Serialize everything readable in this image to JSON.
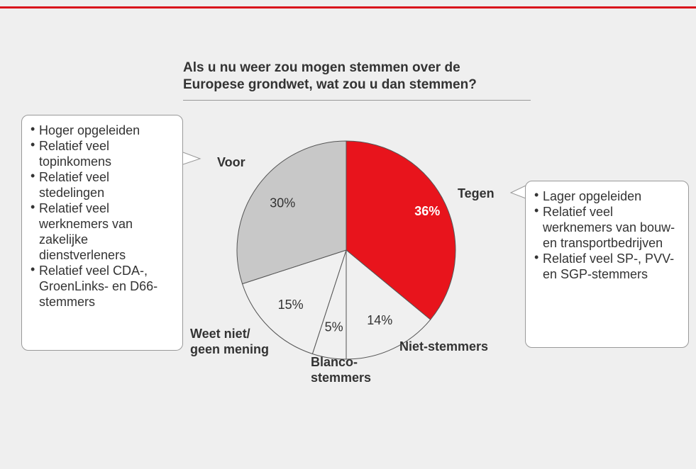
{
  "chart_data": {
    "type": "pie",
    "title": "Als u nu weer zou mogen stemmen over de\nEuropese grondwet, wat zou u dan stemmen?",
    "categories": [
      "Tegen",
      "Niet-stemmers",
      "Blanco-\nstemmers",
      "Weet niet/\ngeen mening",
      "Voor"
    ],
    "values": [
      36,
      14,
      5,
      15,
      30
    ],
    "value_labels": [
      "36%",
      "14%",
      "5%",
      "15%",
      "30%"
    ],
    "colors": [
      "#e8141c",
      "#f0f0f0",
      "#f0f0f0",
      "#f0f0f0",
      "#c8c8c8"
    ]
  },
  "callouts": {
    "left": [
      "Hoger opgeleiden",
      "Relatief veel topinkomens",
      "Relatief veel stedelingen",
      "Relatief veel werknemers van zakelijke dienstverleners",
      "Relatief veel CDA-, GroenLinks- en D66-stemmers"
    ],
    "right": [
      "Lager opgeleiden",
      "Relatief veel werknemers van bouw- en transportbedrijven",
      "Relatief veel SP-, PVV- en SGP-stemmers"
    ]
  }
}
